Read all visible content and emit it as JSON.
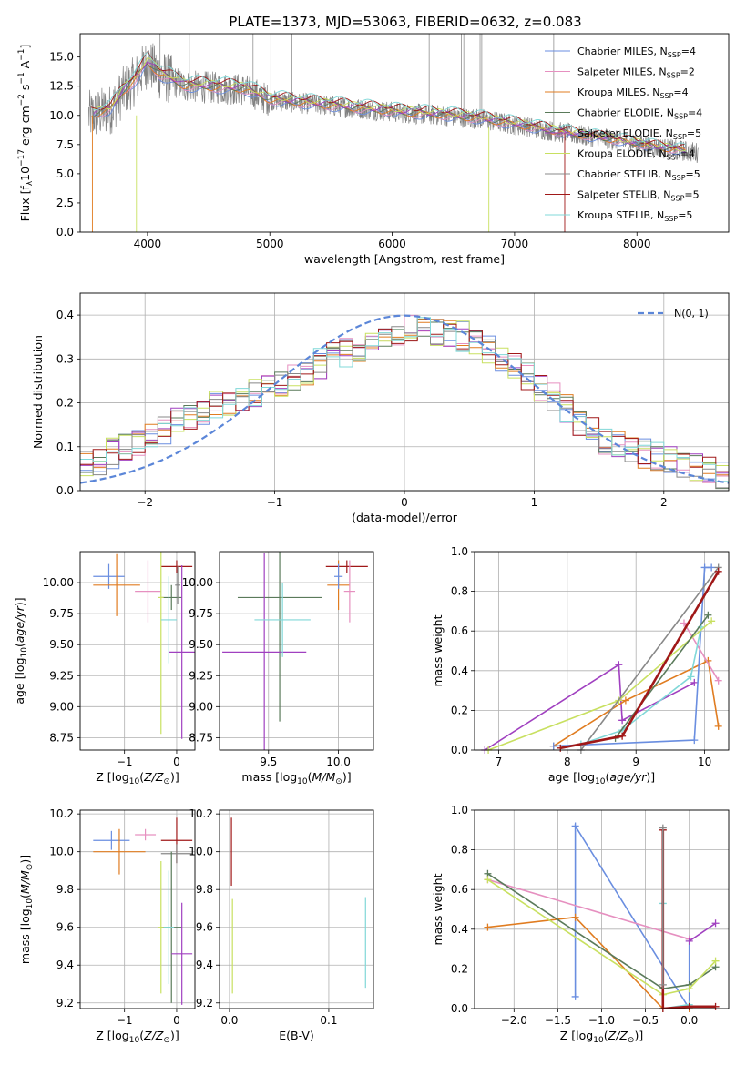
{
  "figure_title": "PLATE=1373, MJD=53063, FIBERID=0632, z=0.083",
  "colors": {
    "chabrier_miles": "#6a8ee0",
    "salpeter_miles": "#e690c0",
    "kroupa_miles": "#e07c20",
    "chabrier_elodie": "#5a7a5a",
    "salpeter_elodie": "#a040c0",
    "kroupa_elodie": "#c8e060",
    "chabrier_stelib": "#888888",
    "salpeter_stelib": "#a01818",
    "kroupa_stelib": "#80d8d8",
    "gauss": "#5b86d8",
    "data": "#808080"
  },
  "chart_data": [
    {
      "id": "spectrum",
      "type": "line",
      "xlabel": "wavelength [Angstrom, rest frame]",
      "ylabel": "Flux [f_λ 10^-17 erg cm^-2 s^-1 A^-1]",
      "xlim": [
        3450,
        8750
      ],
      "ylim": [
        0,
        17
      ],
      "xticks": [
        4000,
        5000,
        6000,
        7000,
        8000
      ],
      "yticks": [
        0.0,
        2.5,
        5.0,
        7.5,
        10.0,
        12.5,
        15.0
      ],
      "legend_position": "top-right",
      "legend": [
        {
          "key": "chabrier_miles",
          "text": "Chabrier MILES, N_SSP=4"
        },
        {
          "key": "salpeter_miles",
          "text": "Salpeter MILES, N_SSP=2"
        },
        {
          "key": "kroupa_miles",
          "text": "Kroupa MILES, N_SSP=4"
        },
        {
          "key": "chabrier_elodie",
          "text": "Chabrier ELODIE, N_SSP=4"
        },
        {
          "key": "salpeter_elodie",
          "text": "Salpeter ELODIE, N_SSP=5"
        },
        {
          "key": "kroupa_elodie",
          "text": "Kroupa ELODIE, N_SSP=4"
        },
        {
          "key": "chabrier_stelib",
          "text": "Chabrier STELIB, N_SSP=5"
        },
        {
          "key": "salpeter_stelib",
          "text": "Salpeter STELIB, N_SSP=5"
        },
        {
          "key": "kroupa_stelib",
          "text": "Kroupa STELIB, N_SSP=5"
        }
      ],
      "continuum": {
        "x": [
          3550,
          3700,
          3800,
          3900,
          4000,
          4100,
          4200,
          4300,
          4500,
          4800,
          5000,
          5200,
          5500,
          5800,
          6100,
          6400,
          6700,
          7000,
          7400,
          7800,
          8200,
          8500
        ],
        "y": [
          10.0,
          10.5,
          12.0,
          13.0,
          14.5,
          13.5,
          13.0,
          12.5,
          12.4,
          12.2,
          11.3,
          11.1,
          10.8,
          10.5,
          10.2,
          10.0,
          9.7,
          9.2,
          8.5,
          7.9,
          7.2,
          6.8
        ]
      }
    },
    {
      "id": "residuals",
      "type": "line",
      "xlabel": "(data-model)/error",
      "ylabel": "Normed distribution",
      "xlim": [
        -2.5,
        2.5
      ],
      "ylim": [
        0,
        0.45
      ],
      "xticks": [
        -2,
        -1,
        0,
        1,
        2
      ],
      "yticks": [
        0.0,
        0.1,
        0.2,
        0.3,
        0.4
      ],
      "legend": [
        {
          "key": "gauss",
          "text": "N(0, 1)"
        }
      ],
      "hist_envelope": {
        "x": [
          -2.5,
          -2.0,
          -1.5,
          -1.0,
          -0.5,
          0.0,
          0.5,
          1.0,
          1.5,
          2.0,
          2.5
        ],
        "y": [
          0.05,
          0.12,
          0.19,
          0.24,
          0.31,
          0.37,
          0.35,
          0.25,
          0.12,
          0.07,
          0.03
        ]
      }
    },
    {
      "id": "age_vs_Z",
      "type": "scatter",
      "xlabel": "Z [log10(Z/Z☉)]",
      "ylabel": "age [log10(age/yr)]",
      "xlim": [
        -1.85,
        0.35
      ],
      "ylim": [
        8.65,
        10.25
      ],
      "xticks": [
        -1,
        0
      ],
      "yticks": [
        8.75,
        9.0,
        9.25,
        9.5,
        9.75,
        10.0
      ],
      "points": [
        {
          "key": "chabrier_miles",
          "x": -1.3,
          "y": 10.05,
          "xerr": 0.3,
          "yerr": 0.1
        },
        {
          "key": "kroupa_miles",
          "x": -1.15,
          "y": 9.98,
          "xerr": 0.45,
          "yerr": 0.25
        },
        {
          "key": "salpeter_miles",
          "x": -0.55,
          "y": 9.93,
          "xerr": 0.25,
          "yerr": 0.25
        },
        {
          "key": "salpeter_stelib",
          "x": 0.0,
          "y": 10.13,
          "xerr": 0.3,
          "yerr": 0.05
        },
        {
          "key": "chabrier_elodie",
          "x": -0.1,
          "y": 9.88,
          "xerr": 0.2,
          "yerr": 0.1
        },
        {
          "key": "kroupa_elodie",
          "x": -0.3,
          "y": 9.88,
          "xerr": 0.05,
          "yerr": 1.1
        },
        {
          "key": "salpeter_elodie",
          "x": 0.1,
          "y": 9.44,
          "xerr": 0.25,
          "yerr": 0.7
        },
        {
          "key": "kroupa_stelib",
          "x": -0.15,
          "y": 9.7,
          "xerr": 0.15,
          "yerr": 0.35
        },
        {
          "key": "chabrier_stelib",
          "x": 0.02,
          "y": 9.98,
          "xerr": 0.05,
          "yerr": 0.15
        }
      ]
    },
    {
      "id": "age_vs_mass",
      "type": "scatter",
      "xlabel": "mass [log10(M/M☉)]",
      "ylabel": "",
      "xlim": [
        9.15,
        10.25
      ],
      "ylim": [
        8.65,
        10.25
      ],
      "xticks": [
        9.5,
        10.0
      ],
      "yticks": [
        8.75,
        9.0,
        9.25,
        9.5,
        9.75,
        10.0
      ],
      "points": [
        {
          "key": "chabrier_elodie",
          "x": 9.58,
          "y": 9.88,
          "xerr": 0.3,
          "yerr": 1.0
        },
        {
          "key": "salpeter_elodie",
          "x": 9.47,
          "y": 9.44,
          "xerr": 0.3,
          "yerr": 0.8
        },
        {
          "key": "kroupa_stelib",
          "x": 9.6,
          "y": 9.7,
          "xerr": 0.2,
          "yerr": 0.3
        },
        {
          "key": "salpeter_stelib",
          "x": 10.06,
          "y": 10.13,
          "xerr": 0.15,
          "yerr": 0.05
        },
        {
          "key": "kroupa_miles",
          "x": 10.0,
          "y": 9.98,
          "xerr": 0.08,
          "yerr": 0.2
        },
        {
          "key": "salpeter_miles",
          "x": 10.08,
          "y": 9.93,
          "xerr": 0.04,
          "yerr": 0.25
        },
        {
          "key": "chabrier_miles",
          "x": 10.0,
          "y": 10.05,
          "xerr": 0.03,
          "yerr": 0.1
        }
      ]
    },
    {
      "id": "weight_vs_age",
      "type": "line",
      "xlabel": "age [log10(age/yr)]",
      "ylabel": "mass weight",
      "xlim": [
        6.65,
        10.35
      ],
      "ylim": [
        0,
        1.0
      ],
      "xticks": [
        7,
        8,
        9,
        10
      ],
      "yticks": [
        0.0,
        0.2,
        0.4,
        0.6,
        0.8,
        1.0
      ],
      "series": [
        {
          "key": "salpeter_elodie",
          "x": [
            6.8,
            8.75,
            8.8,
            9.85
          ],
          "y": [
            0.0,
            0.43,
            0.15,
            0.34
          ]
        },
        {
          "key": "kroupa_miles",
          "x": [
            7.8,
            8.85,
            10.05,
            10.2
          ],
          "y": [
            0.02,
            0.25,
            0.45,
            0.12
          ]
        },
        {
          "key": "chabrier_miles",
          "x": [
            7.8,
            9.85,
            10.0,
            10.1
          ],
          "y": [
            0.02,
            0.05,
            0.92,
            0.92
          ]
        },
        {
          "key": "salpeter_miles",
          "x": [
            9.7,
            10.2
          ],
          "y": [
            0.64,
            0.35
          ]
        },
        {
          "key": "kroupa_stelib",
          "x": [
            8.2,
            8.8,
            9.8,
            9.95
          ],
          "y": [
            0.03,
            0.1,
            0.37,
            0.62
          ]
        },
        {
          "key": "kroupa_elodie",
          "x": [
            6.85,
            8.75,
            10.1
          ],
          "y": [
            0.0,
            0.25,
            0.65
          ]
        },
        {
          "key": "chabrier_elodie",
          "x": [
            8.7,
            10.05
          ],
          "y": [
            0.06,
            0.68
          ]
        },
        {
          "key": "chabrier_stelib",
          "x": [
            8.2,
            10.2
          ],
          "y": [
            0.0,
            0.92
          ]
        },
        {
          "key": "salpeter_stelib",
          "x": [
            7.9,
            8.8,
            10.2
          ],
          "y": [
            0.01,
            0.07,
            0.9
          ]
        }
      ]
    },
    {
      "id": "mass_vs_Z",
      "type": "scatter",
      "xlabel": "Z [log10(Z/Z☉)]",
      "ylabel": "mass [log10(M/M☉)]",
      "xlim": [
        -1.85,
        0.35
      ],
      "ylim": [
        9.17,
        10.22
      ],
      "xticks": [
        -1,
        0
      ],
      "yticks": [
        9.2,
        9.4,
        9.6,
        9.8,
        10.0,
        10.2
      ],
      "points": [
        {
          "key": "chabrier_miles",
          "x": -1.25,
          "y": 10.06,
          "xerr": 0.35,
          "yerr": 0.05
        },
        {
          "key": "kroupa_miles",
          "x": -1.1,
          "y": 10.0,
          "xerr": 0.5,
          "yerr": 0.12
        },
        {
          "key": "salpeter_miles",
          "x": -0.6,
          "y": 10.09,
          "xerr": 0.2,
          "yerr": 0.03
        },
        {
          "key": "salpeter_stelib",
          "x": 0.0,
          "y": 10.06,
          "xerr": 0.3,
          "yerr": 0.12
        },
        {
          "key": "chabrier_stelib",
          "x": 0.0,
          "y": 9.99,
          "xerr": 0.3,
          "yerr": 0.05
        },
        {
          "key": "chabrier_elodie",
          "x": -0.1,
          "y": 9.6,
          "xerr": 0.2,
          "yerr": 0.4
        },
        {
          "key": "kroupa_elodie",
          "x": -0.3,
          "y": 9.6,
          "xerr": 0.05,
          "yerr": 0.35
        },
        {
          "key": "salpeter_elodie",
          "x": 0.1,
          "y": 9.46,
          "xerr": 0.2,
          "yerr": 0.27
        },
        {
          "key": "kroupa_stelib",
          "x": -0.15,
          "y": 9.6,
          "xerr": 0.1,
          "yerr": 0.3
        }
      ]
    },
    {
      "id": "mass_vs_ebv",
      "type": "scatter",
      "xlabel": "E(B-V)",
      "ylabel": "",
      "xlim": [
        -0.01,
        0.145
      ],
      "ylim": [
        9.17,
        10.22
      ],
      "xticks": [
        0.0,
        0.1
      ],
      "yticks": [
        9.2,
        9.4,
        9.6,
        9.8,
        10.0,
        10.2
      ],
      "points": [
        {
          "key": "salpeter_stelib",
          "x": 0.002,
          "y": 10.0,
          "xerr": 0.0,
          "yerr": 0.18
        },
        {
          "key": "kroupa_elodie",
          "x": 0.003,
          "y": 9.5,
          "xerr": 0.0,
          "yerr": 0.25
        },
        {
          "key": "kroupa_stelib",
          "x": 0.137,
          "y": 9.52,
          "xerr": 0.0,
          "yerr": 0.24
        }
      ]
    },
    {
      "id": "weight_vs_Z",
      "type": "line",
      "xlabel": "Z [log10(Z/Z☉)]",
      "ylabel": "mass weight",
      "xlim": [
        -2.45,
        0.45
      ],
      "ylim": [
        0,
        1.0
      ],
      "xticks": [
        -2.0,
        -1.5,
        -1.0,
        -0.5,
        0.0
      ],
      "yticks": [
        0.0,
        0.2,
        0.4,
        0.6,
        0.8,
        1.0
      ],
      "series": [
        {
          "key": "chabrier_miles",
          "x": [
            -1.3,
            -1.3,
            0.0,
            0.0
          ],
          "y": [
            0.06,
            0.92,
            0.0,
            0.35
          ]
        },
        {
          "key": "kroupa_miles",
          "x": [
            -2.3,
            -1.3,
            -0.3,
            0.0
          ],
          "y": [
            0.41,
            0.46,
            0.0,
            0.0
          ]
        },
        {
          "key": "salpeter_miles",
          "x": [
            -2.3,
            0.0
          ],
          "y": [
            0.65,
            0.35
          ]
        },
        {
          "key": "chabrier_elodie",
          "x": [
            -2.3,
            -0.3,
            0.0,
            0.3
          ],
          "y": [
            0.68,
            0.1,
            0.12,
            0.21
          ]
        },
        {
          "key": "kroupa_elodie",
          "x": [
            -2.3,
            -0.3,
            0.0,
            0.3
          ],
          "y": [
            0.65,
            0.07,
            0.1,
            0.24
          ]
        },
        {
          "key": "salpeter_elodie",
          "x": [
            0.0,
            0.3
          ],
          "y": [
            0.34,
            0.43
          ]
        },
        {
          "key": "kroupa_stelib",
          "x": [
            -0.3,
            -0.3,
            0.0
          ],
          "y": [
            0.53,
            0.0,
            0.02
          ]
        },
        {
          "key": "salpeter_stelib",
          "x": [
            -0.3,
            -0.3,
            0.0,
            0.3
          ],
          "y": [
            0.9,
            0.0,
            0.01,
            0.01
          ]
        },
        {
          "key": "chabrier_stelib",
          "x": [
            -0.3,
            -0.3
          ],
          "y": [
            0.91,
            0.12
          ]
        }
      ]
    }
  ]
}
